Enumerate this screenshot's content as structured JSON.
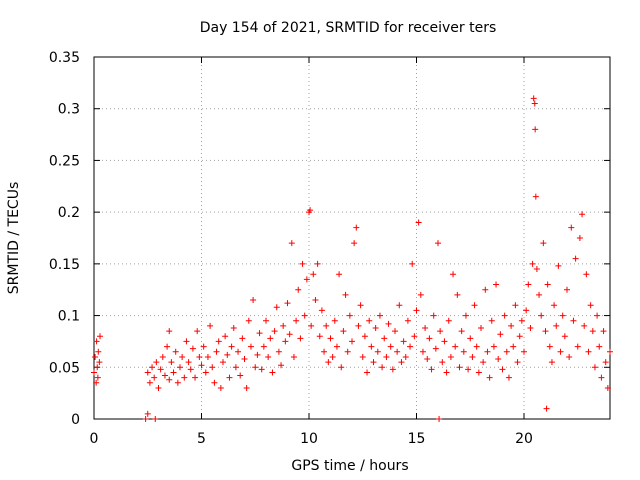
{
  "chart_data": {
    "type": "scatter",
    "title": "Day 154 of 2021, SRMTID for receiver ters",
    "xlabel": "GPS time / hours",
    "ylabel": "SRMTID / TECUs",
    "xlim": [
      0,
      24
    ],
    "ylim": [
      0,
      0.35
    ],
    "xticks": [
      0,
      5,
      10,
      15,
      20
    ],
    "xtick_labels": [
      "0",
      "5",
      "10",
      "15",
      "20"
    ],
    "yticks": [
      0,
      0.05,
      0.1,
      0.15,
      0.2,
      0.25,
      0.3,
      0.35
    ],
    "ytick_labels": [
      "0",
      "0.05",
      "0.1",
      "0.15",
      "0.2",
      "0.25",
      "0.3",
      "0.35"
    ],
    "grid": true,
    "marker": "plus",
    "color": "#ff0000",
    "series": [
      {
        "name": "SRMTID",
        "points": [
          [
            0.0,
            0.045
          ],
          [
            0.05,
            0.06
          ],
          [
            0.1,
            0.035
          ],
          [
            0.12,
            0.075
          ],
          [
            0.15,
            0.05
          ],
          [
            0.18,
            0.04
          ],
          [
            0.2,
            0.065
          ],
          [
            0.25,
            0.055
          ],
          [
            0.28,
            0.08
          ],
          [
            2.4,
            0.0
          ],
          [
            2.5,
            0.005
          ],
          [
            2.85,
            0.0
          ],
          [
            2.5,
            0.045
          ],
          [
            2.6,
            0.035
          ],
          [
            2.7,
            0.05
          ],
          [
            2.8,
            0.04
          ],
          [
            2.9,
            0.055
          ],
          [
            3.0,
            0.03
          ],
          [
            3.1,
            0.048
          ],
          [
            3.2,
            0.06
          ],
          [
            3.3,
            0.042
          ],
          [
            3.4,
            0.07
          ],
          [
            3.5,
            0.038
          ],
          [
            3.5,
            0.085
          ],
          [
            3.6,
            0.055
          ],
          [
            3.7,
            0.045
          ],
          [
            3.8,
            0.065
          ],
          [
            3.9,
            0.035
          ],
          [
            4.0,
            0.05
          ],
          [
            4.1,
            0.06
          ],
          [
            4.2,
            0.04
          ],
          [
            4.3,
            0.075
          ],
          [
            4.4,
            0.055
          ],
          [
            4.5,
            0.048
          ],
          [
            4.6,
            0.068
          ],
          [
            4.7,
            0.04
          ],
          [
            4.8,
            0.085
          ],
          [
            4.9,
            0.06
          ],
          [
            5.0,
            0.052
          ],
          [
            5.1,
            0.07
          ],
          [
            5.2,
            0.045
          ],
          [
            5.3,
            0.06
          ],
          [
            5.4,
            0.09
          ],
          [
            5.5,
            0.05
          ],
          [
            5.6,
            0.035
          ],
          [
            5.7,
            0.065
          ],
          [
            5.8,
            0.075
          ],
          [
            5.9,
            0.03
          ],
          [
            6.0,
            0.055
          ],
          [
            6.1,
            0.08
          ],
          [
            6.2,
            0.062
          ],
          [
            6.3,
            0.04
          ],
          [
            6.4,
            0.07
          ],
          [
            6.5,
            0.088
          ],
          [
            6.6,
            0.05
          ],
          [
            6.7,
            0.065
          ],
          [
            6.8,
            0.042
          ],
          [
            6.9,
            0.078
          ],
          [
            7.0,
            0.058
          ],
          [
            7.1,
            0.03
          ],
          [
            7.2,
            0.095
          ],
          [
            7.3,
            0.07
          ],
          [
            7.4,
            0.115
          ],
          [
            7.5,
            0.05
          ],
          [
            7.6,
            0.062
          ],
          [
            7.7,
            0.083
          ],
          [
            7.8,
            0.048
          ],
          [
            7.9,
            0.07
          ],
          [
            8.0,
            0.095
          ],
          [
            8.1,
            0.06
          ],
          [
            8.2,
            0.078
          ],
          [
            8.3,
            0.045
          ],
          [
            8.4,
            0.085
          ],
          [
            8.5,
            0.108
          ],
          [
            8.6,
            0.065
          ],
          [
            8.7,
            0.052
          ],
          [
            8.8,
            0.09
          ],
          [
            8.9,
            0.075
          ],
          [
            9.0,
            0.112
          ],
          [
            9.1,
            0.082
          ],
          [
            9.2,
            0.17
          ],
          [
            9.3,
            0.06
          ],
          [
            9.4,
            0.095
          ],
          [
            9.5,
            0.125
          ],
          [
            9.6,
            0.078
          ],
          [
            9.7,
            0.15
          ],
          [
            9.8,
            0.1
          ],
          [
            9.9,
            0.135
          ],
          [
            10.0,
            0.2
          ],
          [
            10.05,
            0.202
          ],
          [
            10.1,
            0.09
          ],
          [
            10.2,
            0.14
          ],
          [
            10.3,
            0.115
          ],
          [
            10.4,
            0.15
          ],
          [
            10.5,
            0.08
          ],
          [
            10.6,
            0.105
          ],
          [
            10.7,
            0.065
          ],
          [
            10.8,
            0.09
          ],
          [
            10.9,
            0.055
          ],
          [
            11.0,
            0.078
          ],
          [
            11.1,
            0.06
          ],
          [
            11.2,
            0.095
          ],
          [
            11.3,
            0.07
          ],
          [
            11.4,
            0.14
          ],
          [
            11.5,
            0.05
          ],
          [
            11.6,
            0.085
          ],
          [
            11.7,
            0.12
          ],
          [
            11.8,
            0.065
          ],
          [
            11.9,
            0.1
          ],
          [
            12.0,
            0.075
          ],
          [
            12.1,
            0.17
          ],
          [
            12.2,
            0.185
          ],
          [
            12.3,
            0.09
          ],
          [
            12.4,
            0.11
          ],
          [
            12.5,
            0.06
          ],
          [
            12.6,
            0.08
          ],
          [
            12.7,
            0.045
          ],
          [
            12.8,
            0.095
          ],
          [
            12.9,
            0.07
          ],
          [
            13.0,
            0.055
          ],
          [
            13.1,
            0.088
          ],
          [
            13.2,
            0.065
          ],
          [
            13.3,
            0.1
          ],
          [
            13.4,
            0.05
          ],
          [
            13.5,
            0.078
          ],
          [
            13.6,
            0.06
          ],
          [
            13.7,
            0.092
          ],
          [
            13.8,
            0.07
          ],
          [
            13.9,
            0.048
          ],
          [
            14.0,
            0.085
          ],
          [
            14.1,
            0.065
          ],
          [
            14.2,
            0.11
          ],
          [
            14.3,
            0.055
          ],
          [
            14.4,
            0.075
          ],
          [
            14.5,
            0.06
          ],
          [
            14.6,
            0.095
          ],
          [
            14.7,
            0.07
          ],
          [
            14.8,
            0.15
          ],
          [
            14.9,
            0.08
          ],
          [
            15.0,
            0.105
          ],
          [
            15.1,
            0.19
          ],
          [
            15.2,
            0.12
          ],
          [
            15.3,
            0.065
          ],
          [
            15.4,
            0.088
          ],
          [
            15.5,
            0.058
          ],
          [
            15.6,
            0.078
          ],
          [
            15.7,
            0.048
          ],
          [
            15.8,
            0.1
          ],
          [
            15.9,
            0.068
          ],
          [
            16.0,
            0.17
          ],
          [
            16.05,
            0.0
          ],
          [
            16.1,
            0.085
          ],
          [
            16.2,
            0.055
          ],
          [
            16.3,
            0.075
          ],
          [
            16.4,
            0.045
          ],
          [
            16.5,
            0.095
          ],
          [
            16.6,
            0.06
          ],
          [
            16.7,
            0.14
          ],
          [
            16.8,
            0.07
          ],
          [
            16.9,
            0.12
          ],
          [
            17.0,
            0.05
          ],
          [
            17.1,
            0.085
          ],
          [
            17.2,
            0.065
          ],
          [
            17.3,
            0.1
          ],
          [
            17.4,
            0.048
          ],
          [
            17.5,
            0.078
          ],
          [
            17.6,
            0.06
          ],
          [
            17.7,
            0.11
          ],
          [
            17.8,
            0.07
          ],
          [
            17.9,
            0.045
          ],
          [
            18.0,
            0.088
          ],
          [
            18.1,
            0.055
          ],
          [
            18.2,
            0.125
          ],
          [
            18.3,
            0.065
          ],
          [
            18.4,
            0.04
          ],
          [
            18.5,
            0.095
          ],
          [
            18.6,
            0.07
          ],
          [
            18.7,
            0.13
          ],
          [
            18.8,
            0.058
          ],
          [
            18.9,
            0.082
          ],
          [
            19.0,
            0.048
          ],
          [
            19.1,
            0.1
          ],
          [
            19.2,
            0.065
          ],
          [
            19.3,
            0.04
          ],
          [
            19.4,
            0.09
          ],
          [
            19.5,
            0.07
          ],
          [
            19.6,
            0.11
          ],
          [
            19.7,
            0.055
          ],
          [
            19.8,
            0.08
          ],
          [
            19.9,
            0.095
          ],
          [
            20.0,
            0.065
          ],
          [
            20.1,
            0.105
          ],
          [
            20.2,
            0.13
          ],
          [
            20.3,
            0.088
          ],
          [
            20.4,
            0.15
          ],
          [
            20.45,
            0.31
          ],
          [
            20.5,
            0.305
          ],
          [
            20.52,
            0.28
          ],
          [
            20.55,
            0.215
          ],
          [
            20.6,
            0.145
          ],
          [
            20.7,
            0.12
          ],
          [
            20.8,
            0.1
          ],
          [
            20.9,
            0.17
          ],
          [
            21.0,
            0.085
          ],
          [
            21.05,
            0.01
          ],
          [
            21.1,
            0.13
          ],
          [
            21.2,
            0.07
          ],
          [
            21.3,
            0.055
          ],
          [
            21.4,
            0.11
          ],
          [
            21.5,
            0.09
          ],
          [
            21.6,
            0.148
          ],
          [
            21.7,
            0.065
          ],
          [
            21.8,
            0.1
          ],
          [
            21.9,
            0.08
          ],
          [
            22.0,
            0.125
          ],
          [
            22.1,
            0.06
          ],
          [
            22.2,
            0.185
          ],
          [
            22.3,
            0.095
          ],
          [
            22.4,
            0.155
          ],
          [
            22.5,
            0.07
          ],
          [
            22.6,
            0.175
          ],
          [
            22.7,
            0.198
          ],
          [
            22.8,
            0.09
          ],
          [
            22.9,
            0.14
          ],
          [
            23.0,
            0.065
          ],
          [
            23.1,
            0.11
          ],
          [
            23.2,
            0.085
          ],
          [
            23.3,
            0.05
          ],
          [
            23.4,
            0.1
          ],
          [
            23.5,
            0.07
          ],
          [
            23.6,
            0.04
          ],
          [
            23.7,
            0.085
          ],
          [
            23.8,
            0.055
          ],
          [
            23.9,
            0.03
          ],
          [
            24.0,
            0.065
          ]
        ]
      }
    ]
  }
}
